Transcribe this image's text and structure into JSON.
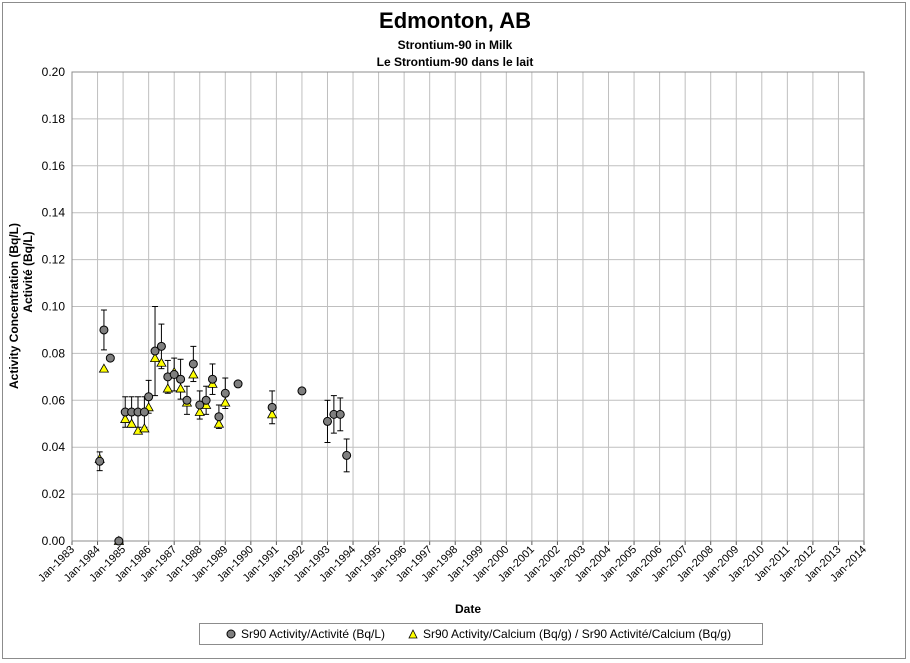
{
  "title": "Edmonton, AB",
  "subtitle1": "Strontium-90 in Milk",
  "subtitle2": "Le Strontium-90 dans le lait",
  "colors": {
    "circle_fill": "#7f7f7f",
    "triangle_fill": "#ffff00",
    "grid": "#bfbfbf",
    "errorbar": "#000000"
  },
  "chart_data": {
    "type": "scatter",
    "xlabel": "Date",
    "ylabel_line1": "Activity Concentration (Bq/L)",
    "ylabel_line2": "Activité (Bq/L)",
    "ylim": [
      0,
      0.2
    ],
    "yticks": [
      "0.00",
      "0.02",
      "0.04",
      "0.06",
      "0.08",
      "0.10",
      "0.12",
      "0.14",
      "0.16",
      "0.18",
      "0.20"
    ],
    "xlim": [
      "Jan-1983",
      "Jan-2014"
    ],
    "xticks": [
      "Jan-1983",
      "Jan-1984",
      "Jan-1985",
      "Jan-1986",
      "Jan-1987",
      "Jan-1988",
      "Jan-1989",
      "Jan-1990",
      "Jan-1991",
      "Jan-1992",
      "Jan-1993",
      "Jan-1994",
      "Jan-1995",
      "Jan-1996",
      "Jan-1997",
      "Jan-1998",
      "Jan-1999",
      "Jan-2000",
      "Jan-2001",
      "Jan-2002",
      "Jan-2003",
      "Jan-2004",
      "Jan-2005",
      "Jan-2006",
      "Jan-2007",
      "Jan-2008",
      "Jan-2009",
      "Jan-2010",
      "Jan-2011",
      "Jan-2012",
      "Jan-2013",
      "Jan-2014"
    ],
    "grid": true,
    "legend_position": "bottom",
    "series": [
      {
        "name": "Sr90 Activity/Activité (Bq/L)",
        "marker": "circle",
        "points": [
          {
            "x": "1984-02",
            "y": 0.034,
            "err": 0.004
          },
          {
            "x": "1984-04",
            "y": 0.09,
            "err": 0.0085
          },
          {
            "x": "1984-07",
            "y": 0.078
          },
          {
            "x": "1984-11",
            "y": 0.0
          },
          {
            "x": "1985-02",
            "y": 0.055,
            "err": 0.0065
          },
          {
            "x": "1985-05",
            "y": 0.055,
            "err": 0.0065
          },
          {
            "x": "1985-08",
            "y": 0.055,
            "err": 0.0065
          },
          {
            "x": "1985-11",
            "y": 0.055,
            "err": 0.0065
          },
          {
            "x": "1986-01",
            "y": 0.0615,
            "err": 0.007
          },
          {
            "x": "1986-04",
            "y": 0.081,
            "err": 0.019
          },
          {
            "x": "1986-07",
            "y": 0.083,
            "err": 0.0095
          },
          {
            "x": "1986-10",
            "y": 0.07,
            "err": 0.007
          },
          {
            "x": "1987-01",
            "y": 0.071,
            "err": 0.007
          },
          {
            "x": "1987-04",
            "y": 0.069,
            "err": 0.0085
          },
          {
            "x": "1987-07",
            "y": 0.06,
            "err": 0.006
          },
          {
            "x": "1987-10",
            "y": 0.0755,
            "err": 0.0075
          },
          {
            "x": "1988-01",
            "y": 0.058,
            "err": 0.006
          },
          {
            "x": "1988-04",
            "y": 0.06,
            "err": 0.006
          },
          {
            "x": "1988-07",
            "y": 0.069,
            "err": 0.0065
          },
          {
            "x": "1988-10",
            "y": 0.053,
            "err": 0.005
          },
          {
            "x": "1989-01",
            "y": 0.063,
            "err": 0.0065
          },
          {
            "x": "1989-07",
            "y": 0.067
          },
          {
            "x": "1990-11",
            "y": 0.057,
            "err": 0.007
          },
          {
            "x": "1992-01",
            "y": 0.064
          },
          {
            "x": "1993-01",
            "y": 0.051,
            "err": 0.009
          },
          {
            "x": "1993-04",
            "y": 0.054,
            "err": 0.008
          },
          {
            "x": "1993-07",
            "y": 0.054,
            "err": 0.007
          },
          {
            "x": "1993-10",
            "y": 0.0365,
            "err": 0.007
          }
        ]
      },
      {
        "name": "Sr90 Activity/Calcium (Bq/g) / Sr90 Activité/Calcium (Bq/g)",
        "marker": "triangle",
        "points": [
          {
            "x": "1984-02",
            "y": 0.035
          },
          {
            "x": "1984-04",
            "y": 0.0735
          },
          {
            "x": "1984-11",
            "y": 0.0
          },
          {
            "x": "1985-02",
            "y": 0.052
          },
          {
            "x": "1985-05",
            "y": 0.05
          },
          {
            "x": "1985-08",
            "y": 0.047
          },
          {
            "x": "1985-11",
            "y": 0.048
          },
          {
            "x": "1986-01",
            "y": 0.057
          },
          {
            "x": "1986-04",
            "y": 0.078
          },
          {
            "x": "1986-07",
            "y": 0.076
          },
          {
            "x": "1986-10",
            "y": 0.065
          },
          {
            "x": "1987-01",
            "y": 0.072
          },
          {
            "x": "1987-04",
            "y": 0.065
          },
          {
            "x": "1987-07",
            "y": 0.059
          },
          {
            "x": "1987-10",
            "y": 0.071
          },
          {
            "x": "1988-01",
            "y": 0.055
          },
          {
            "x": "1988-04",
            "y": 0.058
          },
          {
            "x": "1988-07",
            "y": 0.067
          },
          {
            "x": "1988-10",
            "y": 0.05
          },
          {
            "x": "1989-01",
            "y": 0.059
          },
          {
            "x": "1990-11",
            "y": 0.054
          }
        ]
      }
    ]
  }
}
